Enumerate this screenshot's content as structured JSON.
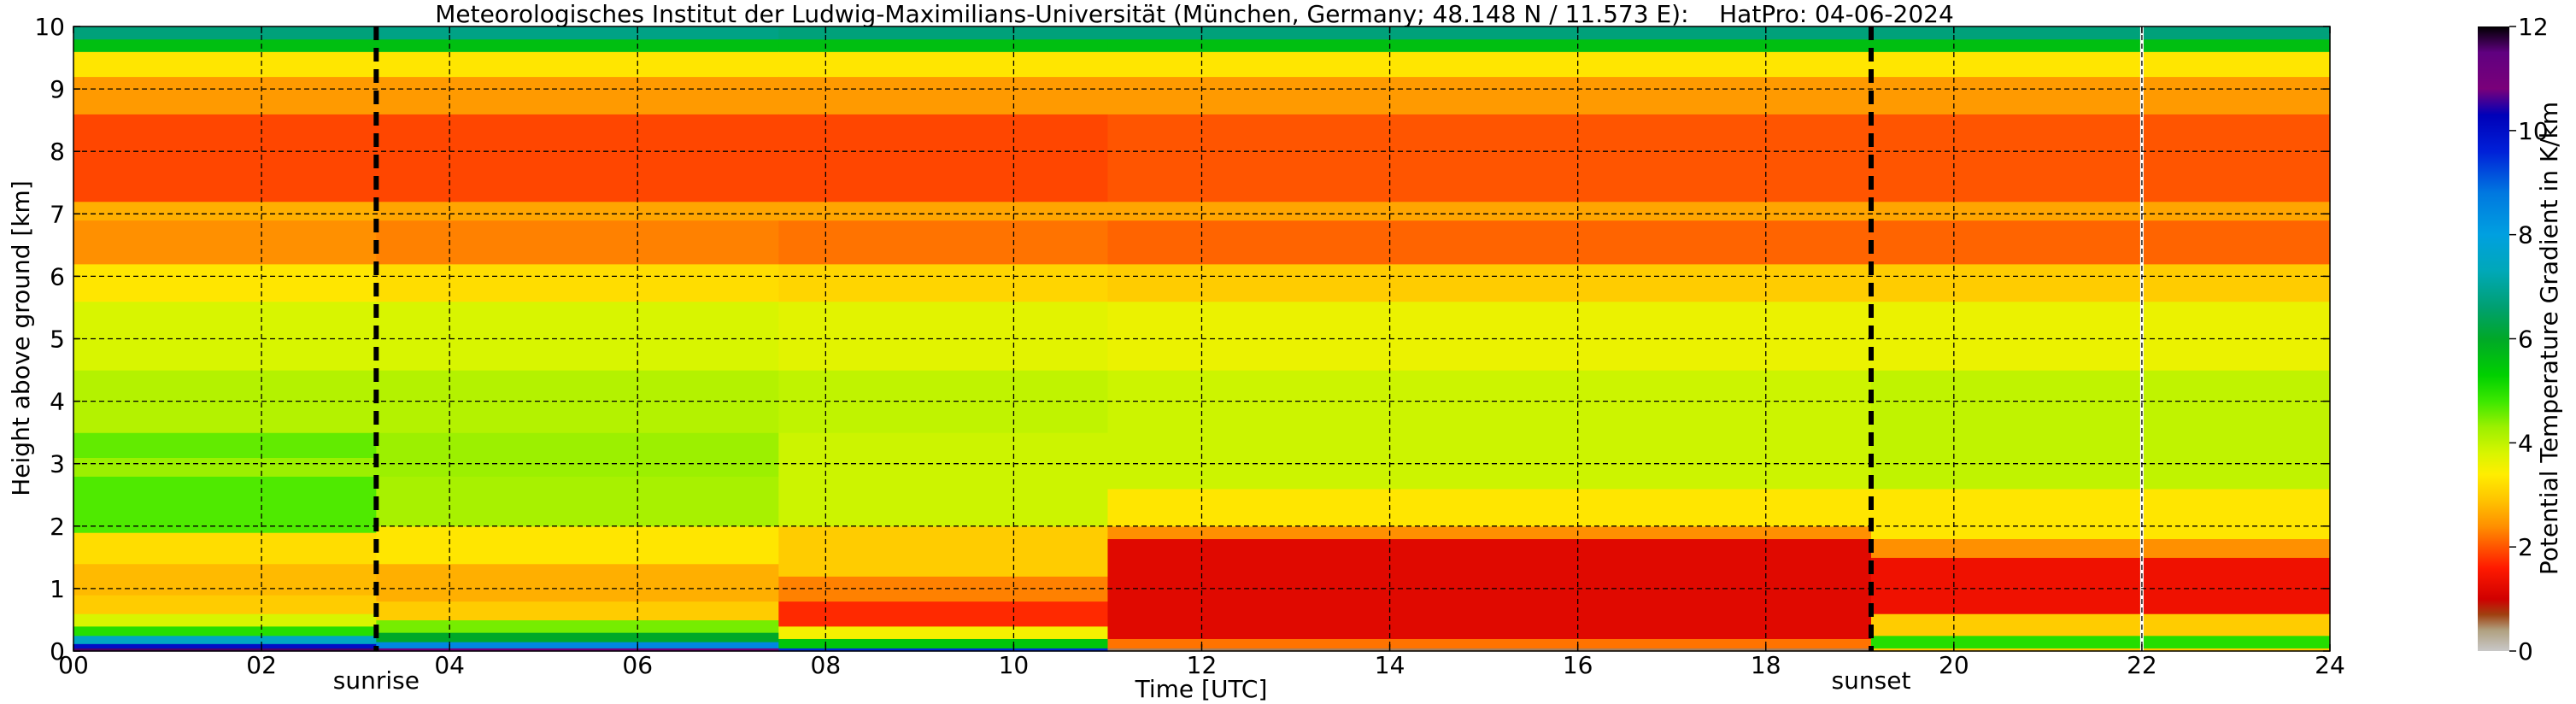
{
  "chart_data": {
    "type": "heatmap",
    "title": "Meteorologisches Institut der Ludwig-Maximilians-Universität (München, Germany; 48.148 N / 11.573 E):    HatPro: 04-06-2024",
    "xlabel": "Time [UTC]",
    "ylabel": "Height above ground [km]",
    "xlim": [
      0,
      24
    ],
    "ylim": [
      0,
      10
    ],
    "x_ticks": [
      0,
      2,
      4,
      6,
      8,
      10,
      12,
      14,
      16,
      18,
      20,
      22,
      24
    ],
    "x_tick_labels": [
      "00",
      "02",
      "04",
      "06",
      "08",
      "10",
      "12",
      "14",
      "16",
      "18",
      "20",
      "22",
      "24"
    ],
    "y_ticks": [
      0,
      1,
      2,
      3,
      4,
      5,
      6,
      7,
      8,
      9,
      10
    ],
    "y_tick_labels": [
      "0",
      "1",
      "2",
      "3",
      "4",
      "5",
      "6",
      "7",
      "8",
      "9",
      "10"
    ],
    "grid": true,
    "colorbar": {
      "label": "Potential Temperature Gradient in K/km",
      "range": [
        0,
        12
      ],
      "ticks": [
        0,
        2,
        4,
        6,
        8,
        10,
        12
      ],
      "tick_labels": [
        "0",
        "2",
        "4",
        "6",
        "8",
        "10",
        "12"
      ],
      "stops": [
        {
          "value": 0,
          "color": "#c8c8c8"
        },
        {
          "value": 0.4,
          "color": "#b0a080"
        },
        {
          "value": 0.7,
          "color": "#a04010"
        },
        {
          "value": 1.0,
          "color": "#d00000"
        },
        {
          "value": 1.6,
          "color": "#ff1a00"
        },
        {
          "value": 2.0,
          "color": "#ff5500"
        },
        {
          "value": 2.4,
          "color": "#ff9000"
        },
        {
          "value": 2.9,
          "color": "#ffc400"
        },
        {
          "value": 3.4,
          "color": "#ffee00"
        },
        {
          "value": 3.8,
          "color": "#d8f500"
        },
        {
          "value": 4.3,
          "color": "#9cf000"
        },
        {
          "value": 4.8,
          "color": "#3ce800"
        },
        {
          "value": 5.3,
          "color": "#00d000"
        },
        {
          "value": 6.0,
          "color": "#00a828"
        },
        {
          "value": 6.6,
          "color": "#00a070"
        },
        {
          "value": 7.3,
          "color": "#00a8b8"
        },
        {
          "value": 8.0,
          "color": "#00a0e0"
        },
        {
          "value": 8.8,
          "color": "#0078e0"
        },
        {
          "value": 9.6,
          "color": "#0020d8"
        },
        {
          "value": 10.3,
          "color": "#0000b8"
        },
        {
          "value": 10.8,
          "color": "#7a007a"
        },
        {
          "value": 11.5,
          "color": "#600080"
        },
        {
          "value": 12,
          "color": "#000000"
        }
      ]
    },
    "annotations": [
      {
        "text": "sunrise",
        "x": 3.22
      },
      {
        "text": "sunset",
        "x": 19.12
      }
    ],
    "data_gap_time": 22.0,
    "time_segments": [
      {
        "t0": 0.0,
        "t1": 3.22,
        "values": [
          {
            "h0": 0.0,
            "h1": 0.05,
            "v": 11.6
          },
          {
            "h0": 0.05,
            "h1": 0.12,
            "v": 10.0
          },
          {
            "h0": 0.12,
            "h1": 0.25,
            "v": 7.5
          },
          {
            "h0": 0.25,
            "h1": 0.4,
            "v": 5.0
          },
          {
            "h0": 0.4,
            "h1": 0.6,
            "v": 3.8
          },
          {
            "h0": 0.6,
            "h1": 0.9,
            "v": 3.0
          },
          {
            "h0": 0.9,
            "h1": 1.4,
            "v": 2.8
          },
          {
            "h0": 1.4,
            "h1": 1.9,
            "v": 3.2
          },
          {
            "h0": 1.9,
            "h1": 2.8,
            "v": 4.7
          },
          {
            "h0": 2.8,
            "h1": 3.1,
            "v": 4.3
          },
          {
            "h0": 3.1,
            "h1": 3.5,
            "v": 4.6
          },
          {
            "h0": 3.5,
            "h1": 4.5,
            "v": 4.1
          },
          {
            "h0": 4.5,
            "h1": 5.6,
            "v": 3.8
          },
          {
            "h0": 5.6,
            "h1": 6.2,
            "v": 3.3
          },
          {
            "h0": 6.2,
            "h1": 6.9,
            "v": 2.4
          },
          {
            "h0": 6.9,
            "h1": 7.2,
            "v": 2.7
          },
          {
            "h0": 7.2,
            "h1": 8.6,
            "v": 1.9
          },
          {
            "h0": 8.6,
            "h1": 9.2,
            "v": 2.5
          },
          {
            "h0": 9.2,
            "h1": 9.6,
            "v": 3.3
          },
          {
            "h0": 9.6,
            "h1": 9.8,
            "v": 5.6
          },
          {
            "h0": 9.8,
            "h1": 10.0,
            "v": 6.7
          }
        ]
      },
      {
        "t0": 3.22,
        "t1": 7.5,
        "values": [
          {
            "h0": 0.0,
            "h1": 0.05,
            "v": 11.0
          },
          {
            "h0": 0.05,
            "h1": 0.15,
            "v": 8.5
          },
          {
            "h0": 0.15,
            "h1": 0.3,
            "v": 6.0
          },
          {
            "h0": 0.3,
            "h1": 0.5,
            "v": 4.5
          },
          {
            "h0": 0.5,
            "h1": 0.8,
            "v": 3.0
          },
          {
            "h0": 0.8,
            "h1": 1.4,
            "v": 2.7
          },
          {
            "h0": 1.4,
            "h1": 2.0,
            "v": 3.3
          },
          {
            "h0": 2.0,
            "h1": 2.8,
            "v": 4.2
          },
          {
            "h0": 2.8,
            "h1": 3.5,
            "v": 4.3
          },
          {
            "h0": 3.5,
            "h1": 4.5,
            "v": 4.1
          },
          {
            "h0": 4.5,
            "h1": 5.6,
            "v": 3.8
          },
          {
            "h0": 5.6,
            "h1": 6.2,
            "v": 3.2
          },
          {
            "h0": 6.2,
            "h1": 6.9,
            "v": 2.3
          },
          {
            "h0": 6.9,
            "h1": 7.2,
            "v": 2.6
          },
          {
            "h0": 7.2,
            "h1": 8.6,
            "v": 1.9
          },
          {
            "h0": 8.6,
            "h1": 9.2,
            "v": 2.5
          },
          {
            "h0": 9.2,
            "h1": 9.6,
            "v": 3.3
          },
          {
            "h0": 9.6,
            "h1": 9.8,
            "v": 5.6
          },
          {
            "h0": 9.8,
            "h1": 10.0,
            "v": 6.8
          }
        ]
      },
      {
        "t0": 7.5,
        "t1": 11.0,
        "values": [
          {
            "h0": 0.0,
            "h1": 0.05,
            "v": 9.5
          },
          {
            "h0": 0.05,
            "h1": 0.2,
            "v": 5.5
          },
          {
            "h0": 0.2,
            "h1": 0.4,
            "v": 3.5
          },
          {
            "h0": 0.4,
            "h1": 0.8,
            "v": 1.7
          },
          {
            "h0": 0.8,
            "h1": 1.2,
            "v": 2.3
          },
          {
            "h0": 1.2,
            "h1": 2.0,
            "v": 3.0
          },
          {
            "h0": 2.0,
            "h1": 3.5,
            "v": 3.9
          },
          {
            "h0": 3.5,
            "h1": 4.5,
            "v": 4.0
          },
          {
            "h0": 4.5,
            "h1": 5.6,
            "v": 3.7
          },
          {
            "h0": 5.6,
            "h1": 6.2,
            "v": 3.1
          },
          {
            "h0": 6.2,
            "h1": 6.9,
            "v": 2.2
          },
          {
            "h0": 6.9,
            "h1": 7.2,
            "v": 2.6
          },
          {
            "h0": 7.2,
            "h1": 8.6,
            "v": 1.9
          },
          {
            "h0": 8.6,
            "h1": 9.2,
            "v": 2.5
          },
          {
            "h0": 9.2,
            "h1": 9.6,
            "v": 3.3
          },
          {
            "h0": 9.6,
            "h1": 9.8,
            "v": 5.6
          },
          {
            "h0": 9.8,
            "h1": 10.0,
            "v": 6.7
          }
        ]
      },
      {
        "t0": 11.0,
        "t1": 19.12,
        "values": [
          {
            "h0": 0.0,
            "h1": 0.05,
            "v": 0.5
          },
          {
            "h0": 0.05,
            "h1": 0.2,
            "v": 2.2
          },
          {
            "h0": 0.2,
            "h1": 1.8,
            "v": 1.2
          },
          {
            "h0": 1.8,
            "h1": 2.0,
            "v": 2.4
          },
          {
            "h0": 2.0,
            "h1": 2.6,
            "v": 3.3
          },
          {
            "h0": 2.6,
            "h1": 4.5,
            "v": 3.9
          },
          {
            "h0": 4.5,
            "h1": 5.6,
            "v": 3.6
          },
          {
            "h0": 5.6,
            "h1": 6.2,
            "v": 3.0
          },
          {
            "h0": 6.2,
            "h1": 6.9,
            "v": 2.1
          },
          {
            "h0": 6.9,
            "h1": 7.2,
            "v": 2.6
          },
          {
            "h0": 7.2,
            "h1": 8.6,
            "v": 2.0
          },
          {
            "h0": 8.6,
            "h1": 9.2,
            "v": 2.5
          },
          {
            "h0": 9.2,
            "h1": 9.6,
            "v": 3.3
          },
          {
            "h0": 9.6,
            "h1": 9.8,
            "v": 5.6
          },
          {
            "h0": 9.8,
            "h1": 10.0,
            "v": 6.7
          }
        ]
      },
      {
        "t0": 19.12,
        "t1": 24.0,
        "values": [
          {
            "h0": 0.0,
            "h1": 0.05,
            "v": 3.0
          },
          {
            "h0": 0.05,
            "h1": 0.25,
            "v": 5.0
          },
          {
            "h0": 0.25,
            "h1": 0.6,
            "v": 3.0
          },
          {
            "h0": 0.6,
            "h1": 1.5,
            "v": 1.4
          },
          {
            "h0": 1.5,
            "h1": 1.8,
            "v": 2.4
          },
          {
            "h0": 1.8,
            "h1": 2.6,
            "v": 3.3
          },
          {
            "h0": 2.6,
            "h1": 4.5,
            "v": 4.0
          },
          {
            "h0": 4.5,
            "h1": 5.6,
            "v": 3.6
          },
          {
            "h0": 5.6,
            "h1": 6.2,
            "v": 3.0
          },
          {
            "h0": 6.2,
            "h1": 6.9,
            "v": 2.1
          },
          {
            "h0": 6.9,
            "h1": 7.2,
            "v": 2.6
          },
          {
            "h0": 7.2,
            "h1": 8.6,
            "v": 2.0
          },
          {
            "h0": 8.6,
            "h1": 9.2,
            "v": 2.5
          },
          {
            "h0": 9.2,
            "h1": 9.6,
            "v": 3.3
          },
          {
            "h0": 9.6,
            "h1": 9.8,
            "v": 5.6
          },
          {
            "h0": 9.8,
            "h1": 10.0,
            "v": 6.7
          }
        ]
      }
    ]
  }
}
